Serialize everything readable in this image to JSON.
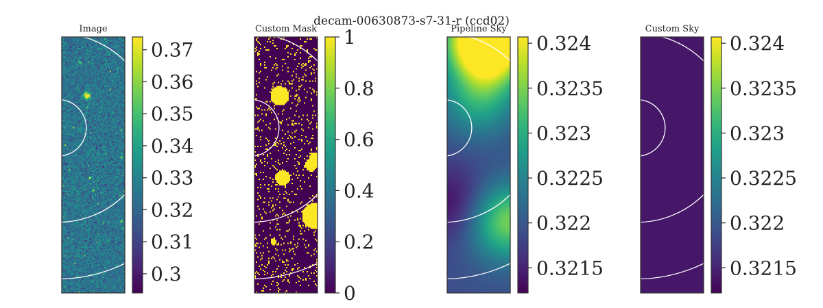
{
  "figure": {
    "suptitle": "decam-00630873-s7-31-r (ccd02)"
  },
  "colors": {
    "viridis": [
      "#440154",
      "#482878",
      "#3e4a89",
      "#31688e",
      "#26828e",
      "#1f9e89",
      "#35b779",
      "#6ece58",
      "#b5de2b",
      "#fde725"
    ],
    "ring": "#ffffff",
    "frame": "#333333"
  },
  "chart_data": [
    {
      "type": "heatmap",
      "title": "Image",
      "colorbar": {
        "range": [
          0.294,
          0.374
        ],
        "ticks": [
          0.3,
          0.31,
          0.32,
          0.33,
          0.34,
          0.35,
          0.36,
          0.37
        ],
        "tick_labels": [
          "0.3",
          "0.31",
          "0.32",
          "0.33",
          "0.34",
          "0.35",
          "0.36",
          "0.37"
        ]
      },
      "description_values": {
        "background_level": 0.325,
        "noise_sigma": 0.006
      },
      "sources": [
        [
          0.4,
          0.23,
          0.025
        ],
        [
          0.3,
          0.1,
          0.008
        ],
        [
          0.45,
          0.55,
          0.008
        ],
        [
          0.95,
          0.47,
          0.008
        ],
        [
          0.95,
          0.72,
          0.008
        ],
        [
          0.5,
          0.6,
          0.008
        ]
      ]
    },
    {
      "type": "heatmap",
      "title": "Custom Mask",
      "colorbar": {
        "range": [
          0,
          1
        ],
        "ticks": [
          0,
          0.2,
          0.4,
          0.6,
          0.8,
          1
        ],
        "tick_labels": [
          "0",
          "0.2",
          "0.4",
          "0.6",
          "0.8",
          "1"
        ]
      },
      "blobs": [
        [
          0.4,
          0.23,
          0.15
        ],
        [
          0.45,
          0.55,
          0.12
        ],
        [
          0.95,
          0.7,
          0.2
        ],
        [
          0.9,
          0.5,
          0.1
        ],
        [
          0.95,
          0.47,
          0.08
        ],
        [
          0.3,
          0.8,
          0.05
        ]
      ]
    },
    {
      "type": "heatmap",
      "title": "Pipeline Sky",
      "colorbar": {
        "range": [
          0.32122,
          0.32407
        ],
        "ticks": [
          0.3215,
          0.322,
          0.3225,
          0.323,
          0.3235,
          0.324
        ],
        "tick_labels": [
          "0.3215",
          "0.322",
          "0.3225",
          "0.323",
          "0.3235",
          "0.324"
        ]
      },
      "sky_features": [
        {
          "x": 0.5,
          "y": 0.0,
          "value": 0.32407
        },
        {
          "x": 0.5,
          "y": 0.24,
          "value": 0.3229
        },
        {
          "x": 0.95,
          "y": 0.72,
          "value": 0.3235
        },
        {
          "x": 0.1,
          "y": 0.65,
          "value": 0.3213
        },
        {
          "x": 0.8,
          "y": 0.05,
          "value": 0.3234
        }
      ],
      "base_value": 0.3219
    },
    {
      "type": "heatmap",
      "title": "Custom Sky",
      "colorbar": {
        "range": [
          0.32122,
          0.32407
        ],
        "ticks": [
          0.3215,
          0.322,
          0.3225,
          0.323,
          0.3235,
          0.324
        ],
        "tick_labels": [
          "0.3215",
          "0.322",
          "0.3225",
          "0.323",
          "0.3235",
          "0.324"
        ]
      },
      "constant_value": 0.3214
    }
  ]
}
